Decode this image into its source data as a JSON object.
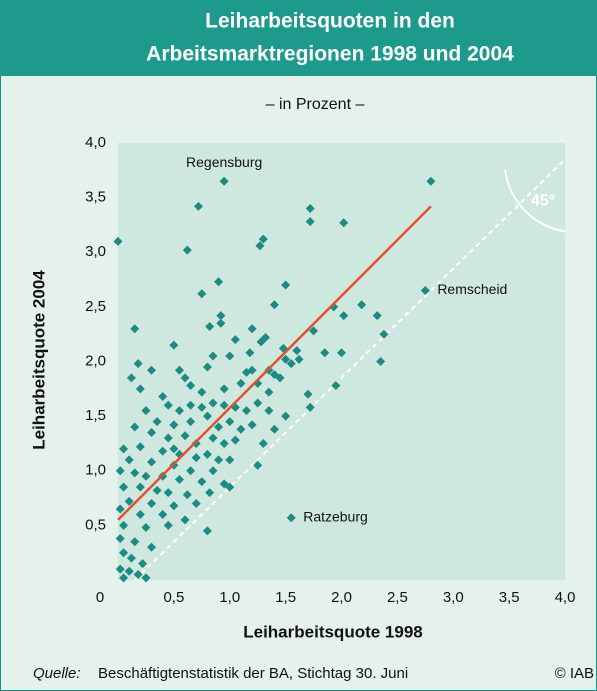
{
  "chart_data": {
    "type": "scatter",
    "title": [
      "Leiharbeitsquoten in den",
      "Arbeitsmarktregionen 1998 und 2004"
    ],
    "subtitle": "– in Prozent –",
    "x_label": "Leiharbeitsquote 1998",
    "y_label": "Leiharbeitsquote 2004",
    "source_label": "Quelle:",
    "source": "Beschäftigtenstatistik der BA, Stichtag 30. Juni",
    "copyright": "© IAB",
    "xlim": [
      0,
      4
    ],
    "ylim": [
      0,
      4
    ],
    "xticks": [
      0,
      {
        "value": 0.5,
        "label": "0,5"
      },
      {
        "value": 1,
        "label": "1,0"
      },
      {
        "value": 1.5,
        "label": "1,5"
      },
      {
        "value": 2,
        "label": "2,0"
      },
      {
        "value": 2.5,
        "label": "2,5"
      },
      {
        "value": 3,
        "label": "3,0"
      },
      {
        "value": 3.5,
        "label": "3,5"
      },
      {
        "value": 4,
        "label": "4,0"
      }
    ],
    "yticks": [
      {
        "value": 0.5,
        "label": "0,5"
      },
      {
        "value": 1,
        "label": "1,0"
      },
      {
        "value": 1.5,
        "label": "1,5"
      },
      {
        "value": 2,
        "label": "2,0"
      },
      {
        "value": 2.5,
        "label": "2,5"
      },
      {
        "value": 3,
        "label": "3,0"
      },
      {
        "value": 3.5,
        "label": "3,5"
      },
      {
        "value": 4,
        "label": "4,0"
      }
    ],
    "color": "#1d8b83",
    "x": [
      0,
      0.95,
      2.8,
      0.72,
      1.72,
      1.72,
      2.02,
      1.3,
      1.27,
      0.62,
      1.5,
      0.9,
      0.75,
      2.75,
      1.93,
      2.18,
      2.02,
      2.32,
      1.4,
      0.92,
      0.92,
      0.82,
      1.75,
      0.15,
      2.38,
      1.32,
      1.28,
      1.05,
      0.5,
      1.18,
      1.48,
      1.6,
      1.85,
      2.0,
      2.35,
      1.5,
      1.55,
      1.62,
      0.85,
      1.0,
      0.18,
      0.12,
      0.55,
      0.6,
      0.8,
      1.15,
      1.2,
      1.35,
      1.4,
      1.45,
      0.65,
      0.75,
      0.95,
      1.1,
      1.25,
      1.35,
      1.7,
      1.95,
      0.2,
      0.4,
      0.45,
      0.55,
      0.75,
      0.85,
      0.95,
      1.05,
      1.15,
      1.25,
      1.35,
      1.5,
      1.72,
      0.25,
      0.35,
      0.5,
      0.65,
      0.8,
      0.9,
      1.0,
      1.1,
      1.2,
      1.4,
      0.15,
      0.3,
      0.45,
      0.6,
      0.7,
      0.85,
      0.95,
      1.05,
      1.3,
      0.05,
      0.2,
      0.4,
      0.55,
      0.7,
      0.8,
      0.9,
      1.0,
      1.25,
      0.1,
      0.3,
      0.5,
      0.65,
      0.85,
      0.02,
      0.15,
      0.25,
      0.4,
      0.55,
      0.75,
      0.95,
      0.05,
      0.2,
      0.35,
      0.45,
      0.62,
      0.82,
      1.0,
      0.1,
      0.3,
      0.5,
      0.7,
      0.02,
      0.2,
      0.4,
      0.6,
      0.8,
      1.55,
      0.05,
      0.25,
      0.45,
      0.02,
      0.15,
      0.3,
      0.05,
      0.12,
      0.22,
      0.02,
      0.1,
      0.18,
      0.05,
      0.25,
      0.5,
      0.65,
      1.2,
      0.3
    ],
    "y": [
      3.1,
      3.65,
      3.65,
      3.42,
      3.4,
      3.28,
      3.27,
      3.12,
      3.06,
      3.02,
      2.7,
      2.73,
      2.62,
      2.65,
      2.5,
      2.52,
      2.42,
      2.42,
      2.52,
      2.42,
      2.35,
      2.32,
      2.28,
      2.3,
      2.25,
      2.22,
      2.18,
      2.2,
      2.15,
      2.08,
      2.12,
      2.1,
      2.08,
      2.08,
      2.0,
      2.02,
      1.98,
      2.02,
      2.05,
      2.05,
      1.98,
      1.85,
      1.92,
      1.85,
      1.95,
      1.9,
      1.92,
      1.92,
      1.88,
      1.85,
      1.78,
      1.72,
      1.75,
      1.8,
      1.8,
      1.72,
      1.7,
      1.78,
      1.75,
      1.68,
      1.6,
      1.55,
      1.58,
      1.62,
      1.6,
      1.58,
      1.55,
      1.62,
      1.55,
      1.5,
      1.58,
      1.55,
      1.45,
      1.42,
      1.45,
      1.5,
      1.4,
      1.45,
      1.38,
      1.42,
      1.38,
      1.4,
      1.35,
      1.3,
      1.32,
      1.25,
      1.3,
      1.25,
      1.28,
      1.25,
      1.2,
      1.22,
      1.18,
      1.15,
      1.12,
      1.15,
      1.1,
      1.1,
      1.05,
      1.1,
      1.08,
      1.05,
      1.0,
      1.0,
      1.0,
      0.98,
      0.95,
      0.95,
      0.92,
      0.9,
      0.88,
      0.85,
      0.85,
      0.82,
      0.8,
      0.78,
      0.8,
      0.85,
      0.72,
      0.7,
      0.68,
      0.7,
      0.65,
      0.6,
      0.6,
      0.55,
      0.45,
      0.57,
      0.5,
      0.48,
      0.5,
      0.38,
      0.35,
      0.3,
      0.25,
      0.2,
      0.15,
      0.1,
      0.08,
      0.05,
      0.02,
      0.02,
      1.2,
      1.6,
      2.3,
      1.92
    ],
    "trend_line": {
      "x": [
        0,
        2.8
      ],
      "y": [
        0.55,
        3.42
      ],
      "color": "#e0532a"
    },
    "reference_line": {
      "x": [
        0.15,
        4
      ],
      "y": [
        0,
        3.85
      ],
      "label": "45°"
    },
    "annotations": [
      {
        "text": "Regensburg",
        "x": 0.95,
        "y": 3.65,
        "position": "above"
      },
      {
        "text": "Remscheid",
        "x": 2.75,
        "y": 2.65,
        "position": "right"
      },
      {
        "text": "Ratzeburg",
        "x": 1.55,
        "y": 0.57,
        "position": "right"
      }
    ]
  }
}
